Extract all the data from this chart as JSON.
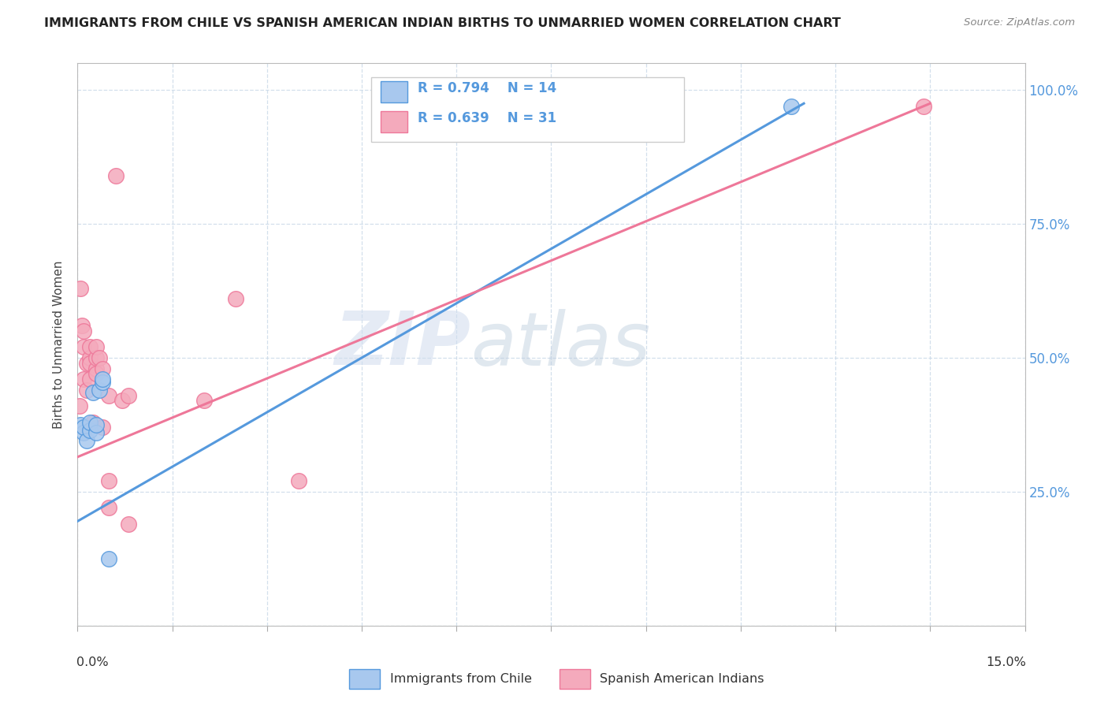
{
  "title": "IMMIGRANTS FROM CHILE VS SPANISH AMERICAN INDIAN BIRTHS TO UNMARRIED WOMEN CORRELATION CHART",
  "source": "Source: ZipAtlas.com",
  "ylabel_ticks": [
    0.0,
    0.25,
    0.5,
    0.75,
    1.0
  ],
  "ylabel_labels": [
    "",
    "25.0%",
    "50.0%",
    "75.0%",
    "100.0%"
  ],
  "xlim": [
    0.0,
    0.15
  ],
  "ylim": [
    0.1,
    1.05
  ],
  "legend_label1": "Immigrants from Chile",
  "legend_label2": "Spanish American Indians",
  "legend_R1": "R = 0.794",
  "legend_N1": "N = 14",
  "legend_R2": "R = 0.639",
  "legend_N2": "N = 31",
  "color_blue": "#A8C8EE",
  "color_pink": "#F4AABC",
  "color_blue_line": "#5599DD",
  "color_pink_line": "#EE7799",
  "watermark_zip": "ZIP",
  "watermark_atlas": "atlas",
  "blue_points_x": [
    0.0005,
    0.001,
    0.001,
    0.0015,
    0.002,
    0.002,
    0.0025,
    0.003,
    0.003,
    0.0035,
    0.004,
    0.004,
    0.005,
    0.113
  ],
  "blue_points_y": [
    0.375,
    0.36,
    0.37,
    0.345,
    0.365,
    0.38,
    0.435,
    0.36,
    0.375,
    0.44,
    0.455,
    0.46,
    0.125,
    0.97
  ],
  "pink_points_x": [
    0.0003,
    0.0005,
    0.0007,
    0.001,
    0.001,
    0.001,
    0.0015,
    0.0015,
    0.002,
    0.002,
    0.002,
    0.002,
    0.0025,
    0.003,
    0.003,
    0.003,
    0.003,
    0.0035,
    0.004,
    0.004,
    0.005,
    0.005,
    0.005,
    0.006,
    0.007,
    0.008,
    0.008,
    0.02,
    0.025,
    0.035,
    0.134
  ],
  "pink_points_y": [
    0.41,
    0.63,
    0.56,
    0.46,
    0.52,
    0.55,
    0.44,
    0.49,
    0.46,
    0.5,
    0.52,
    0.49,
    0.38,
    0.48,
    0.5,
    0.52,
    0.47,
    0.5,
    0.48,
    0.37,
    0.27,
    0.22,
    0.43,
    0.84,
    0.42,
    0.19,
    0.43,
    0.42,
    0.61,
    0.27,
    0.97
  ],
  "blue_line_x": [
    0.0,
    0.115
  ],
  "blue_line_y": [
    0.195,
    0.975
  ],
  "pink_line_x": [
    0.0,
    0.135
  ],
  "pink_line_y": [
    0.315,
    0.975
  ]
}
